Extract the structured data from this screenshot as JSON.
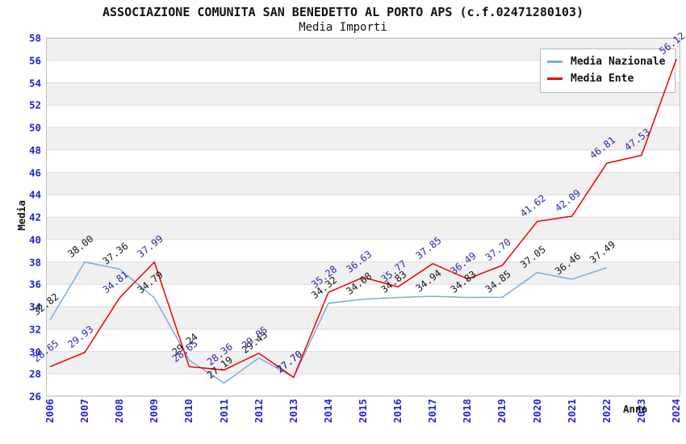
{
  "header": {
    "title": "ASSOCIAZIONE COMUNITA SAN BENEDETTO AL PORTO APS (c.f.02471280103)",
    "subtitle": "Media Importi"
  },
  "legend": {
    "items": [
      {
        "label": "Media Nazionale",
        "color": "#78ADE0"
      },
      {
        "label": "Media Ente",
        "color": "#EE0000"
      }
    ]
  },
  "axes": {
    "y_label": "Media",
    "x_label": "Anno",
    "y_ticks": [
      26,
      28,
      30,
      32,
      34,
      36,
      38,
      40,
      42,
      44,
      46,
      48,
      50,
      52,
      54,
      56,
      58
    ],
    "x_ticks": [
      2006,
      2007,
      2008,
      2009,
      2010,
      2011,
      2012,
      2013,
      2014,
      2015,
      2016,
      2017,
      2018,
      2019,
      2020,
      2021,
      2022,
      2023,
      2024
    ]
  },
  "chart_data": {
    "type": "line",
    "title": "ASSOCIAZIONE COMUNITA SAN BENEDETTO AL PORTO APS (c.f.02471280103)",
    "subtitle": "Media Importi",
    "xlabel": "Anno",
    "ylabel": "Media",
    "ylim": [
      26,
      58
    ],
    "grid": "horizontal-bands",
    "legend_position": "top-right",
    "x": [
      2006,
      2007,
      2008,
      2009,
      2010,
      2011,
      2012,
      2013,
      2014,
      2015,
      2016,
      2017,
      2018,
      2019,
      2020,
      2021,
      2022,
      2023,
      2024
    ],
    "series": [
      {
        "name": "Media Nazionale",
        "color": "#78ADE0",
        "label_color": "#141414",
        "values": [
          32.82,
          38.0,
          37.36,
          34.79,
          29.24,
          27.19,
          29.43,
          27.7,
          34.32,
          34.68,
          34.83,
          34.94,
          34.83,
          34.85,
          37.05,
          36.46,
          37.49,
          null,
          null
        ]
      },
      {
        "name": "Media Ente",
        "color": "#EE0000",
        "label_color": "#2A2AA0",
        "values": [
          28.65,
          29.93,
          34.81,
          37.99,
          28.65,
          28.36,
          29.85,
          27.7,
          35.28,
          36.63,
          35.77,
          37.85,
          36.49,
          37.7,
          41.62,
          42.09,
          46.81,
          47.53,
          56.12
        ]
      }
    ],
    "style": {
      "band_fill": "#F0F0F0",
      "gridline_color": "#DCDCDC",
      "plot_border_color": "#C0C0C0",
      "tick_label_color": "#2222CC"
    }
  }
}
